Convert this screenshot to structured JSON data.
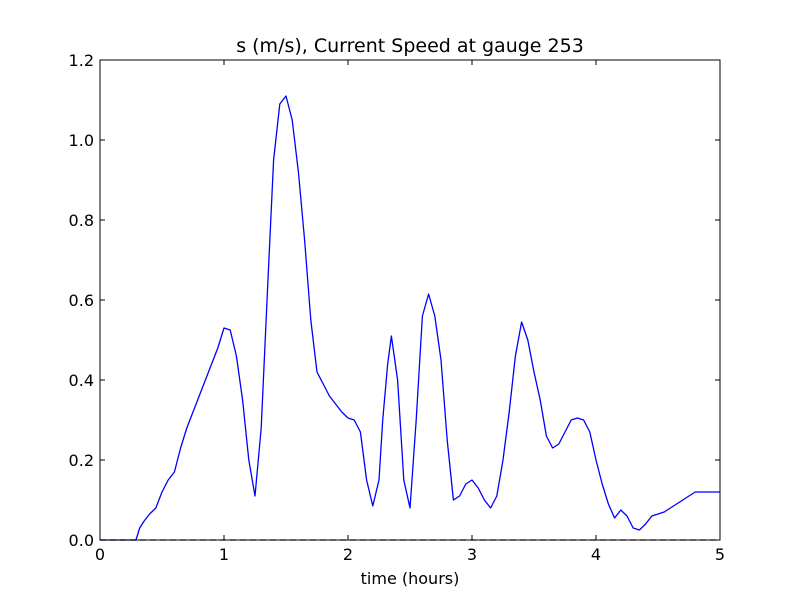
{
  "chart_data": {
    "type": "line",
    "title": "s (m/s), Current Speed at gauge 253",
    "xlabel": "time (hours)",
    "ylabel": "",
    "xlim": [
      0,
      5
    ],
    "ylim": [
      0,
      1.2
    ],
    "xticks": [
      0,
      1,
      2,
      3,
      4,
      5
    ],
    "xtick_labels": [
      "0",
      "1",
      "2",
      "3",
      "4",
      "5"
    ],
    "yticks": [
      0.0,
      0.2,
      0.4,
      0.6,
      0.8,
      1.0,
      1.2
    ],
    "ytick_labels": [
      "0.0",
      "0.2",
      "0.4",
      "0.6",
      "0.8",
      "1.0",
      "1.2"
    ],
    "grid": false,
    "series": [
      {
        "color": "#0000ff",
        "style": "solid",
        "x": [
          0,
          0.2,
          0.29,
          0.32,
          0.35,
          0.4,
          0.45,
          0.5,
          0.55,
          0.6,
          0.65,
          0.7,
          0.75,
          0.8,
          0.85,
          0.9,
          0.95,
          1.0,
          1.05,
          1.1,
          1.15,
          1.2,
          1.25,
          1.3,
          1.35,
          1.4,
          1.45,
          1.5,
          1.55,
          1.6,
          1.65,
          1.7,
          1.75,
          1.8,
          1.85,
          1.9,
          1.95,
          2.0,
          2.05,
          2.1,
          2.15,
          2.2,
          2.25,
          2.28,
          2.32,
          2.35,
          2.4,
          2.45,
          2.5,
          2.55,
          2.6,
          2.65,
          2.7,
          2.75,
          2.8,
          2.85,
          2.9,
          2.95,
          3.0,
          3.05,
          3.1,
          3.15,
          3.2,
          3.25,
          3.3,
          3.35,
          3.4,
          3.45,
          3.5,
          3.55,
          3.6,
          3.65,
          3.7,
          3.75,
          3.8,
          3.85,
          3.9,
          3.95,
          4.0,
          4.05,
          4.1,
          4.15,
          4.2,
          4.25,
          4.3,
          4.35,
          4.4,
          4.45,
          4.5,
          4.55,
          4.6,
          4.65,
          4.7,
          4.75,
          4.8,
          4.85,
          4.9,
          4.95,
          5.0
        ],
        "y": [
          0.0,
          0.0,
          0.0,
          0.03,
          0.045,
          0.065,
          0.08,
          0.12,
          0.15,
          0.17,
          0.23,
          0.28,
          0.32,
          0.36,
          0.4,
          0.44,
          0.48,
          0.53,
          0.525,
          0.46,
          0.35,
          0.2,
          0.11,
          0.28,
          0.62,
          0.95,
          1.09,
          1.11,
          1.05,
          0.92,
          0.75,
          0.55,
          0.42,
          0.39,
          0.36,
          0.34,
          0.32,
          0.305,
          0.3,
          0.27,
          0.15,
          0.085,
          0.15,
          0.3,
          0.44,
          0.51,
          0.4,
          0.15,
          0.08,
          0.3,
          0.56,
          0.615,
          0.56,
          0.45,
          0.25,
          0.1,
          0.11,
          0.14,
          0.15,
          0.13,
          0.1,
          0.08,
          0.11,
          0.2,
          0.32,
          0.46,
          0.545,
          0.5,
          0.42,
          0.35,
          0.26,
          0.23,
          0.24,
          0.27,
          0.3,
          0.305,
          0.3,
          0.27,
          0.2,
          0.14,
          0.09,
          0.055,
          0.075,
          0.06,
          0.03,
          0.025,
          0.04,
          0.06,
          0.065,
          0.07,
          0.08,
          0.09,
          0.1,
          0.11,
          0.12,
          0.12,
          0.12,
          0.12,
          0.12
        ]
      },
      {
        "color": "#000000",
        "style": "dashed",
        "x": [
          0,
          5
        ],
        "y": [
          0,
          0
        ]
      }
    ]
  }
}
